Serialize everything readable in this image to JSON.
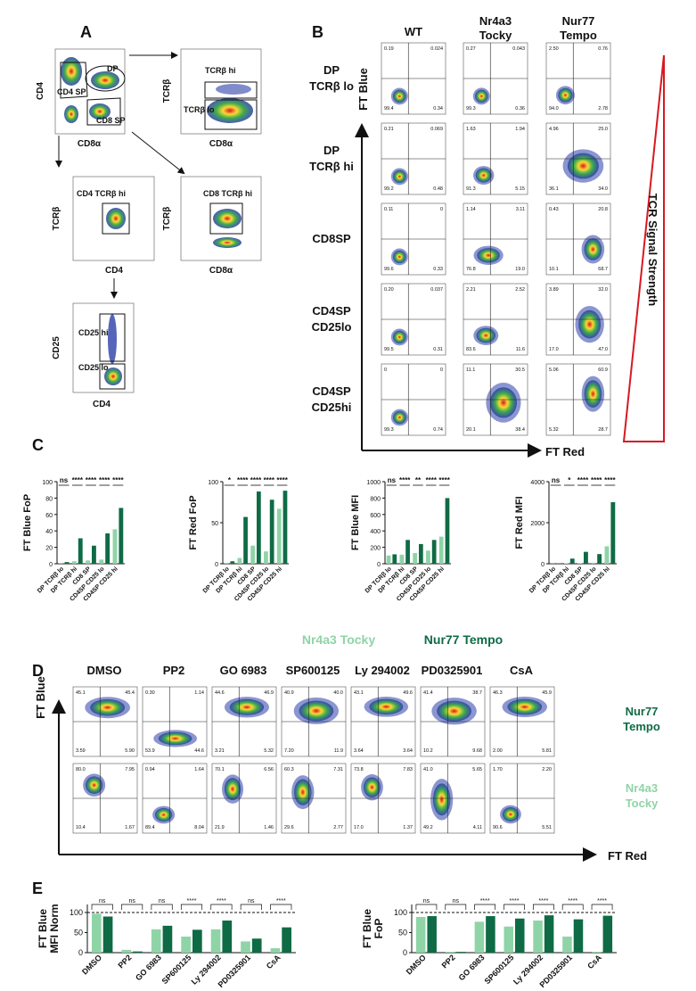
{
  "panel_a": {
    "letter": "A",
    "plots": [
      {
        "y_label": "CD4",
        "x_label": "CD8α",
        "gates": [
          "DP",
          "CD4 SP",
          "CD8 SP"
        ]
      },
      {
        "y_label": "TCRβ",
        "x_label": "CD8α",
        "gates": [
          "TCRβ hi",
          "TCRβ lo"
        ]
      },
      {
        "y_label": "TCRβ",
        "x_label": "CD4",
        "gates": [
          "CD4 TCRβ hi"
        ]
      },
      {
        "y_label": "TCRβ",
        "x_label": "CD8α",
        "gates": [
          "CD8 TCRβ hi"
        ]
      },
      {
        "y_label": "CD25",
        "x_label": "CD4",
        "gates": [
          "CD25 hi",
          "CD25 lo"
        ]
      }
    ]
  },
  "panel_b": {
    "letter": "B",
    "columns": [
      [
        "WT"
      ],
      [
        "Nr4a3",
        "Tocky"
      ],
      [
        "Nur77",
        "Tempo"
      ]
    ],
    "rows": [
      {
        "label": [
          "DP",
          "TCRβ lo"
        ],
        "quadrants": [
          [
            "0.19",
            "0.024",
            "99.4",
            "0.34"
          ],
          [
            "0.27",
            "0.043",
            "99.3",
            "0.36"
          ],
          [
            "2.50",
            "0.76",
            "94.0",
            "2.78"
          ]
        ]
      },
      {
        "label": [
          "DP",
          "TCRβ hi"
        ],
        "quadrants": [
          [
            "0.21",
            "0.069",
            "99.2",
            "0.48"
          ],
          [
            "1.63",
            "1.94",
            "91.3",
            "5.15"
          ],
          [
            "4.96",
            "25.0",
            "36.1",
            "34.0"
          ]
        ]
      },
      {
        "label": [
          "CD8SP"
        ],
        "quadrants": [
          [
            "0.11",
            "0",
            "99.6",
            "0.33"
          ],
          [
            "1.14",
            "3.11",
            "76.8",
            "19.0"
          ],
          [
            "0.43",
            "20.8",
            "10.1",
            "68.7"
          ]
        ]
      },
      {
        "label": [
          "CD4SP",
          "CD25lo"
        ],
        "quadrants": [
          [
            "0.20",
            "0.037",
            "99.5",
            "0.31"
          ],
          [
            "2.21",
            "2.52",
            "83.6",
            "11.6"
          ],
          [
            "3.89",
            "32.0",
            "17.0",
            "47.0"
          ]
        ]
      },
      {
        "label": [
          "CD4SP",
          "CD25hi"
        ],
        "quadrants": [
          [
            "0",
            "0",
            "99.3",
            "0.74"
          ],
          [
            "11.1",
            "30.5",
            "20.1",
            "38.4"
          ],
          [
            "5.06",
            "60.9",
            "5.32",
            "28.7"
          ]
        ]
      }
    ],
    "y_axis": "FT Blue",
    "x_axis": "FT Red",
    "gradient_label": "TCR Signal Strength"
  },
  "panel_c": {
    "letter": "C"
  },
  "panel_d": {
    "letter": "D",
    "conditions": [
      "DMSO",
      "PP2",
      "GO 6983",
      "SP600125",
      "Ly 294002",
      "PD0325901",
      "CsA"
    ],
    "rows": [
      {
        "label": [
          "Nur77",
          "Tempo"
        ],
        "quadrants": [
          [
            "45.1",
            "45.4",
            "3.59",
            "5.90"
          ],
          [
            "0.30",
            "1.14",
            "53.9",
            "44.6"
          ],
          [
            "44.6",
            "46.9",
            "3.21",
            "5.32"
          ],
          [
            "40.9",
            "40.0",
            "7.20",
            "11.9"
          ],
          [
            "43.1",
            "49.6",
            "3.64",
            "3.64"
          ],
          [
            "41.4",
            "38.7",
            "10.2",
            "9.68"
          ],
          [
            "46.3",
            "45.9",
            "2.00",
            "5.81"
          ]
        ]
      },
      {
        "label": [
          "Nr4a3",
          "Tocky"
        ],
        "quadrants": [
          [
            "80.0",
            "7.95",
            "10.4",
            "1.67"
          ],
          [
            "0.94",
            "1.64",
            "89.4",
            "8.04"
          ],
          [
            "70.1",
            "6.56",
            "21.9",
            "1.46"
          ],
          [
            "60.3",
            "7.31",
            "29.6",
            "2.77"
          ],
          [
            "73.8",
            "7.83",
            "17.0",
            "1.37"
          ],
          [
            "41.0",
            "5.65",
            "49.2",
            "4.11"
          ],
          [
            "1.70",
            "2.20",
            "90.6",
            "5.51"
          ]
        ]
      }
    ],
    "y_axis": "FT Blue",
    "x_axis": "FT Red"
  },
  "panel_e": {
    "letter": "E"
  },
  "chart_data": [
    {
      "type": "bar",
      "y_label": [
        "FT  Blue FoP"
      ],
      "categories": [
        "DP TCRβ lo",
        "DP TCRβ hi",
        "CD8 SP",
        "CD4SP CD25 lo",
        "CD4SP CD25 hi"
      ],
      "series": [
        {
          "name": "Nr4a3 Tocky",
          "color": "#8fd4a6",
          "values": [
            1,
            3,
            4,
            5,
            42
          ]
        },
        {
          "name": "Nur77 Tempo",
          "color": "#0f6b45",
          "values": [
            2,
            31,
            22,
            37,
            68
          ]
        }
      ],
      "significance": [
        "ns",
        "****",
        "****",
        "****",
        "****"
      ],
      "ylim": [
        0,
        100
      ],
      "yticks": [
        0,
        20,
        40,
        60,
        80,
        100
      ]
    },
    {
      "type": "bar",
      "y_label": [
        "FT  Red FoP"
      ],
      "categories": [
        "DP TCRβ lo",
        "DP TCRβ hi",
        "CD8 SP",
        "CD4SP CD25 lo",
        "CD4SP CD25 hi"
      ],
      "series": [
        {
          "name": "Nr4a3 Tocky",
          "color": "#8fd4a6",
          "values": [
            1,
            7,
            22,
            15,
            67
          ]
        },
        {
          "name": "Nur77 Tempo",
          "color": "#0f6b45",
          "values": [
            3,
            57,
            88,
            78,
            89
          ]
        }
      ],
      "significance": [
        "*",
        "****",
        "****",
        "****",
        "****"
      ],
      "ylim": [
        0,
        100
      ],
      "yticks": [
        0,
        50,
        100
      ]
    },
    {
      "type": "bar",
      "y_label": [
        "FT Blue MFI"
      ],
      "categories": [
        "DP TCRβ lo",
        "DP TCRβ hi",
        "CD8 SP",
        "CD4SP CD25 lo",
        "CD4SP CD25 hi"
      ],
      "series": [
        {
          "name": "Nr4a3 Tocky",
          "color": "#8fd4a6",
          "values": [
            100,
            110,
            130,
            160,
            330
          ]
        },
        {
          "name": "Nur77 Tempo",
          "color": "#0f6b45",
          "values": [
            115,
            290,
            240,
            290,
            800
          ]
        }
      ],
      "significance": [
        "ns",
        "****",
        "**",
        "****",
        "****"
      ],
      "ylim": [
        0,
        1000
      ],
      "yticks": [
        0,
        200,
        400,
        600,
        800,
        1000
      ]
    },
    {
      "type": "bar",
      "y_label": [
        "FT Red MFI"
      ],
      "categories": [
        "DP TCRβ lo",
        "DP TCRβ hi",
        "CD8 SP",
        "CD4SP CD25 lo",
        "CD4SP CD25 hi"
      ],
      "series": [
        {
          "name": "Nr4a3 Tocky",
          "color": "#8fd4a6",
          "values": [
            10,
            20,
            30,
            50,
            850
          ]
        },
        {
          "name": "Nur77 Tempo",
          "color": "#0f6b45",
          "values": [
            20,
            250,
            580,
            470,
            3000
          ]
        }
      ],
      "significance": [
        "ns",
        "*",
        "****",
        "****",
        "****"
      ],
      "ylim": [
        0,
        4000
      ],
      "yticks": [
        0,
        2000,
        4000
      ]
    },
    {
      "type": "bar",
      "y_label": [
        "FT Blue",
        "MFI Norm"
      ],
      "categories": [
        "DMSO",
        "PP2",
        "GO 6983",
        "SP600125",
        "Ly 294002",
        "PD0325901",
        "CsA"
      ],
      "series": [
        {
          "name": "Nr4a3 Tocky",
          "color": "#8fd4a6",
          "values": [
            97,
            7,
            58,
            40,
            58,
            28,
            11
          ]
        },
        {
          "name": "Nur77 Tempo",
          "color": "#0f6b45",
          "values": [
            90,
            3,
            67,
            57,
            80,
            35,
            63
          ]
        }
      ],
      "significance": [
        "ns",
        "ns",
        "ns",
        "****",
        "****",
        "ns",
        "****"
      ],
      "ylim": [
        0,
        120
      ],
      "yticks": [
        0,
        50,
        100
      ],
      "reference_line": 100
    },
    {
      "type": "bar",
      "y_label": [
        "FT Blue",
        "FoP"
      ],
      "categories": [
        "DMSO",
        "PP2",
        "GO 6983",
        "SP600125",
        "Ly 294002",
        "PD0325901",
        "CsA"
      ],
      "series": [
        {
          "name": "Nr4a3 Tocky",
          "color": "#8fd4a6",
          "values": [
            89,
            2,
            77,
            65,
            80,
            40,
            2
          ]
        },
        {
          "name": "Nur77 Tempo",
          "color": "#0f6b45",
          "values": [
            91,
            2,
            91,
            85,
            93,
            83,
            92
          ]
        }
      ],
      "significance": [
        "ns",
        "ns",
        "****",
        "****",
        "****",
        "****",
        "****"
      ],
      "ylim": [
        0,
        120
      ],
      "yticks": [
        0,
        50,
        100
      ],
      "reference_line": 100
    }
  ]
}
